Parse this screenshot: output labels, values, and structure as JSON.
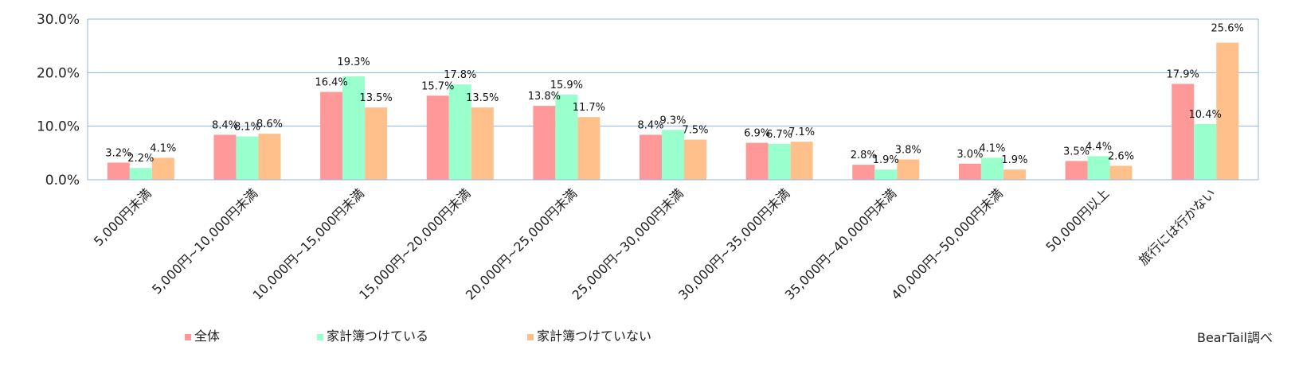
{
  "chart_data": {
    "type": "bar",
    "categories": [
      "5,000円未満",
      "5,000円~10,000円未満",
      "10,000円~15,000円未満",
      "15,000円~20,000円未満",
      "20,000円~25,000円未満",
      "25,000円~30,000円未満",
      "30,000円~35,000円未満",
      "35,000円~40,000円未満",
      "40,000円~50,000円未満",
      "50,000円以上",
      "旅行には行かない"
    ],
    "series": [
      {
        "name": "全体",
        "color": "#FF9999",
        "values": [
          3.2,
          8.4,
          16.4,
          15.7,
          13.8,
          8.4,
          6.9,
          2.8,
          3.0,
          3.5,
          17.9
        ],
        "labels": [
          "3.2%",
          "8.4%",
          "16.4%",
          "15.7%",
          "13.8%",
          "8.4%",
          "6.9%",
          "2.8%",
          "3.0%",
          "3.5%",
          "17.9%"
        ]
      },
      {
        "name": "家計簿つけている",
        "color": "#99FFCC",
        "values": [
          2.2,
          8.1,
          19.3,
          17.8,
          15.9,
          9.3,
          6.7,
          1.9,
          4.1,
          4.4,
          10.4
        ],
        "labels": [
          "2.2%",
          "8.1%",
          "19.3%",
          "17.8%",
          "15.9%",
          "9.3%",
          "6.7%",
          "1.9%",
          "4.1%",
          "4.4%",
          "10.4%"
        ]
      },
      {
        "name": "家計簿つけていない",
        "color": "#FFC08C",
        "values": [
          4.1,
          8.6,
          13.5,
          13.5,
          11.7,
          7.5,
          7.1,
          3.8,
          1.9,
          2.6,
          25.6
        ],
        "labels": [
          "4.1%",
          "8.6%",
          "13.5%",
          "13.5%",
          "11.7%",
          "7.5%",
          "7.1%",
          "3.8%",
          "1.9%",
          "2.6%",
          "25.6%"
        ]
      }
    ],
    "ylim": [
      0,
      30
    ],
    "yticks": [
      0,
      10,
      20,
      30
    ],
    "ytick_labels": [
      "0.0%",
      "10.0%",
      "20.0%",
      "30.0%"
    ],
    "grid": true,
    "grid_color": "#8EB4E3",
    "legend_position": "bottom-left",
    "title": "",
    "xlabel": "",
    "ylabel": ""
  },
  "source_note": "BearTail調べ"
}
